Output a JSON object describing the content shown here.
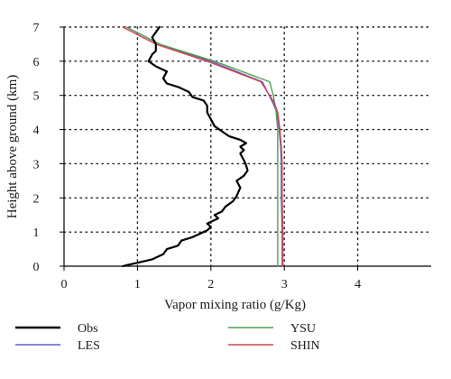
{
  "chart_data": {
    "type": "line",
    "xlabel": "Vapor mixing ratio (g/Kg)",
    "ylabel": "Height above ground (km)",
    "xlim": [
      0,
      5
    ],
    "ylim": [
      0,
      7
    ],
    "xticks": [
      "0",
      "1",
      "2",
      "3",
      "4"
    ],
    "yticks": [
      "0",
      "1",
      "2",
      "3",
      "4",
      "5",
      "6",
      "7"
    ],
    "grid": "dotted",
    "legend_position": "bottom",
    "series": [
      {
        "name": "Obs",
        "color": "#000000",
        "points": [
          [
            0.8,
            0.0
          ],
          [
            0.85,
            0.03
          ],
          [
            1.0,
            0.1
          ],
          [
            1.2,
            0.2
          ],
          [
            1.35,
            0.35
          ],
          [
            1.4,
            0.5
          ],
          [
            1.55,
            0.6
          ],
          [
            1.6,
            0.75
          ],
          [
            1.75,
            0.85
          ],
          [
            1.85,
            0.95
          ],
          [
            1.95,
            1.05
          ],
          [
            2.0,
            1.15
          ],
          [
            1.95,
            1.25
          ],
          [
            2.1,
            1.4
          ],
          [
            2.05,
            1.5
          ],
          [
            2.15,
            1.6
          ],
          [
            2.2,
            1.75
          ],
          [
            2.3,
            1.9
          ],
          [
            2.35,
            2.05
          ],
          [
            2.4,
            2.3
          ],
          [
            2.35,
            2.5
          ],
          [
            2.45,
            2.65
          ],
          [
            2.5,
            2.8
          ],
          [
            2.48,
            2.95
          ],
          [
            2.45,
            3.1
          ],
          [
            2.4,
            3.3
          ],
          [
            2.45,
            3.4
          ],
          [
            2.4,
            3.5
          ],
          [
            2.48,
            3.6
          ],
          [
            2.4,
            3.7
          ],
          [
            2.25,
            3.8
          ],
          [
            2.15,
            3.95
          ],
          [
            2.05,
            4.1
          ],
          [
            2.0,
            4.3
          ],
          [
            1.95,
            4.5
          ],
          [
            1.95,
            4.7
          ],
          [
            1.9,
            4.85
          ],
          [
            1.75,
            4.95
          ],
          [
            1.7,
            5.1
          ],
          [
            1.55,
            5.25
          ],
          [
            1.4,
            5.35
          ],
          [
            1.35,
            5.5
          ],
          [
            1.4,
            5.7
          ],
          [
            1.25,
            5.85
          ],
          [
            1.15,
            6.0
          ],
          [
            1.2,
            6.2
          ],
          [
            1.25,
            6.3
          ],
          [
            1.25,
            6.5
          ],
          [
            1.2,
            6.7
          ],
          [
            1.25,
            6.85
          ],
          [
            1.3,
            7.0
          ]
        ]
      },
      {
        "name": "LES",
        "color": "#5a5ecf",
        "points": [
          [
            2.97,
            0.0
          ],
          [
            2.97,
            1.0
          ],
          [
            2.96,
            2.0
          ],
          [
            2.96,
            3.0
          ],
          [
            2.95,
            3.5
          ],
          [
            2.93,
            4.0
          ],
          [
            2.9,
            4.5
          ],
          [
            2.84,
            4.8
          ],
          [
            2.7,
            5.4
          ],
          [
            2.0,
            6.0
          ],
          [
            1.3,
            6.5
          ],
          [
            0.85,
            7.0
          ]
        ]
      },
      {
        "name": "YSU",
        "color": "#4f9e4f",
        "points": [
          [
            2.91,
            0.0
          ],
          [
            2.91,
            1.0
          ],
          [
            2.91,
            2.0
          ],
          [
            2.91,
            3.0
          ],
          [
            2.91,
            4.0
          ],
          [
            2.89,
            4.5
          ],
          [
            2.85,
            5.0
          ],
          [
            2.8,
            5.4
          ],
          [
            2.05,
            6.0
          ],
          [
            1.3,
            6.5
          ],
          [
            0.85,
            7.0
          ]
        ]
      },
      {
        "name": "SHIN",
        "color": "#d4424b",
        "points": [
          [
            2.98,
            0.0
          ],
          [
            2.98,
            1.0
          ],
          [
            2.97,
            2.0
          ],
          [
            2.97,
            3.0
          ],
          [
            2.96,
            3.5
          ],
          [
            2.94,
            4.0
          ],
          [
            2.91,
            4.5
          ],
          [
            2.86,
            4.8
          ],
          [
            2.68,
            5.4
          ],
          [
            1.95,
            6.0
          ],
          [
            1.25,
            6.5
          ],
          [
            0.8,
            7.0
          ]
        ]
      }
    ]
  }
}
